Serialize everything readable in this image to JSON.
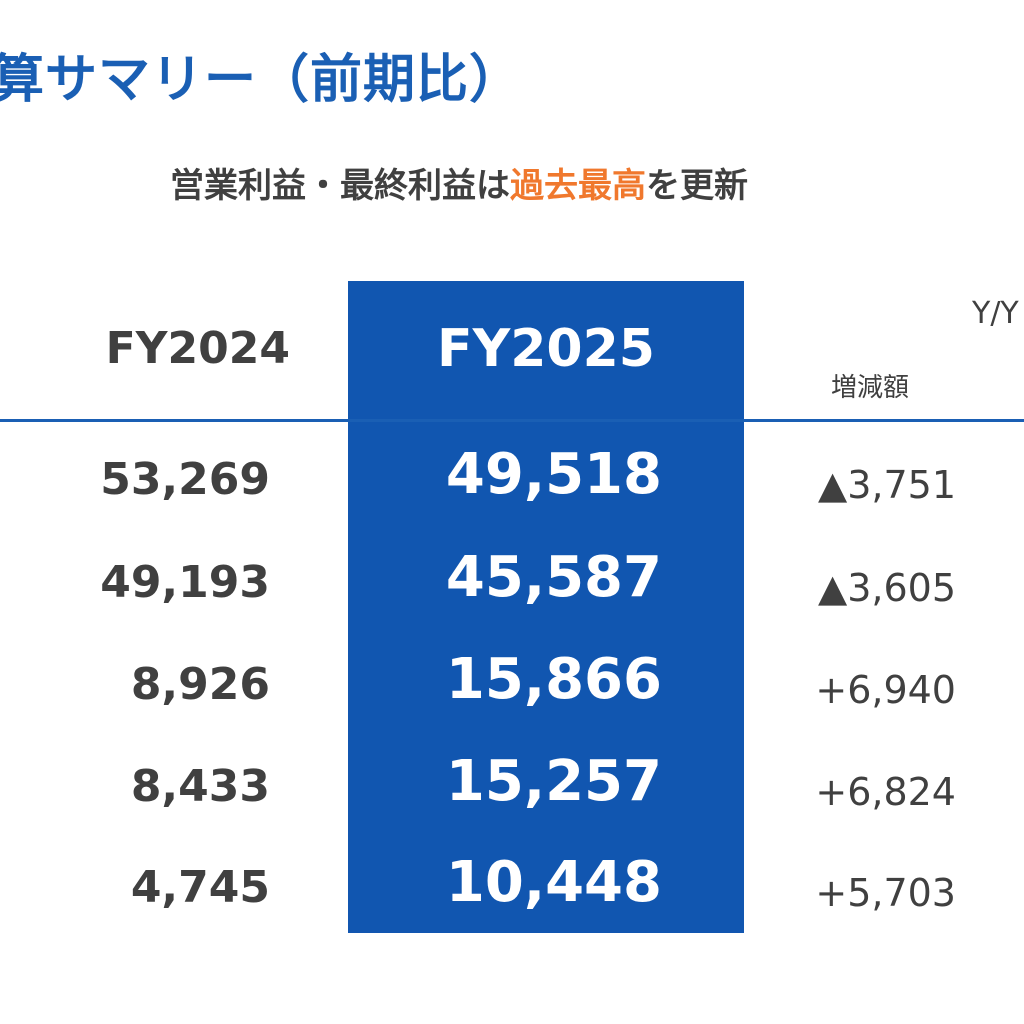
{
  "title": "算サマリー（前期比）",
  "subtitle": {
    "before": "営業利益・最終利益は",
    "highlight": "過去最高",
    "after": "を更新"
  },
  "table": {
    "headers": {
      "prev_year": "FY2024",
      "current_year": "FY2025",
      "yoy": "Y/Y",
      "diff": "増減額"
    },
    "rows": [
      {
        "prev": "53,269",
        "current": "49,518",
        "diff": "▲3,751"
      },
      {
        "prev": "49,193",
        "current": "45,587",
        "diff": "▲3,605"
      },
      {
        "prev": "8,926",
        "current": "15,866",
        "diff": "+6,940"
      },
      {
        "prev": "8,433",
        "current": "15,257",
        "diff": "+6,824"
      },
      {
        "prev": "4,745",
        "current": "10,448",
        "diff": "+5,703"
      }
    ]
  },
  "colors": {
    "brand_blue": "#1156b0",
    "title_blue": "#1a5fb4",
    "highlight_orange": "#f0782d",
    "text_gray": "#404040"
  }
}
